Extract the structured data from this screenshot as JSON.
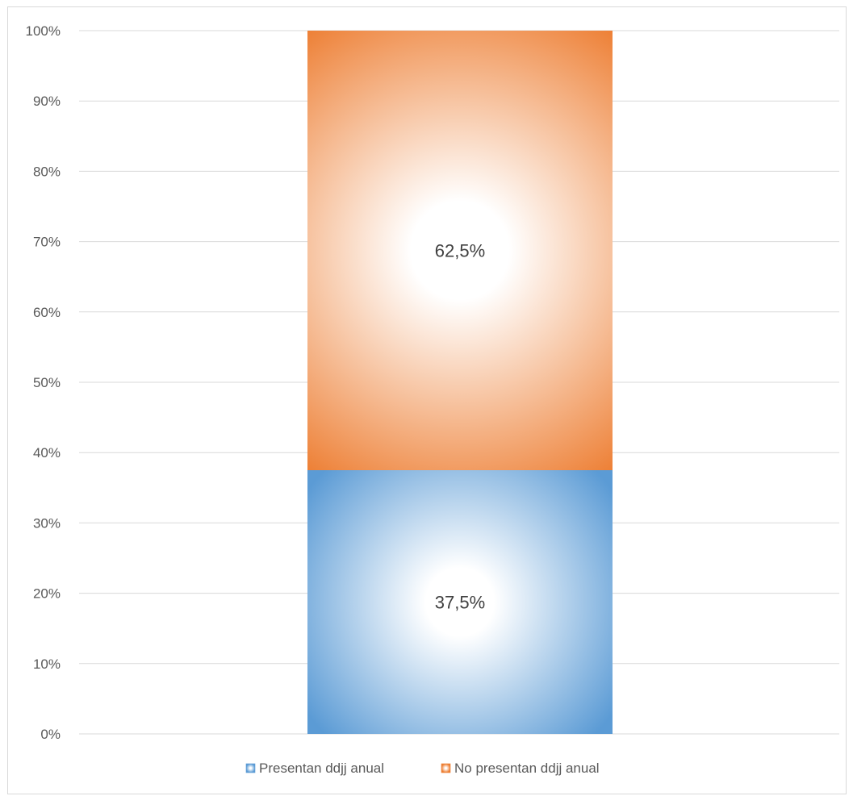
{
  "chart_data": {
    "type": "bar",
    "stacked": true,
    "categories": [
      ""
    ],
    "series": [
      {
        "name": "Presentan ddjj anual",
        "values": [
          37.5
        ],
        "label": "37,5%",
        "color": "#5b9bd5"
      },
      {
        "name": "No presentan ddjj anual",
        "values": [
          62.5
        ],
        "label": "62,5%",
        "color": "#ed7d31"
      }
    ],
    "ylim": [
      0,
      100
    ],
    "yticks": [
      "0%",
      "10%",
      "20%",
      "30%",
      "40%",
      "50%",
      "60%",
      "70%",
      "80%",
      "90%",
      "100%"
    ],
    "grid": true,
    "legend": "bottom",
    "title": "",
    "xlabel": "",
    "ylabel": ""
  }
}
